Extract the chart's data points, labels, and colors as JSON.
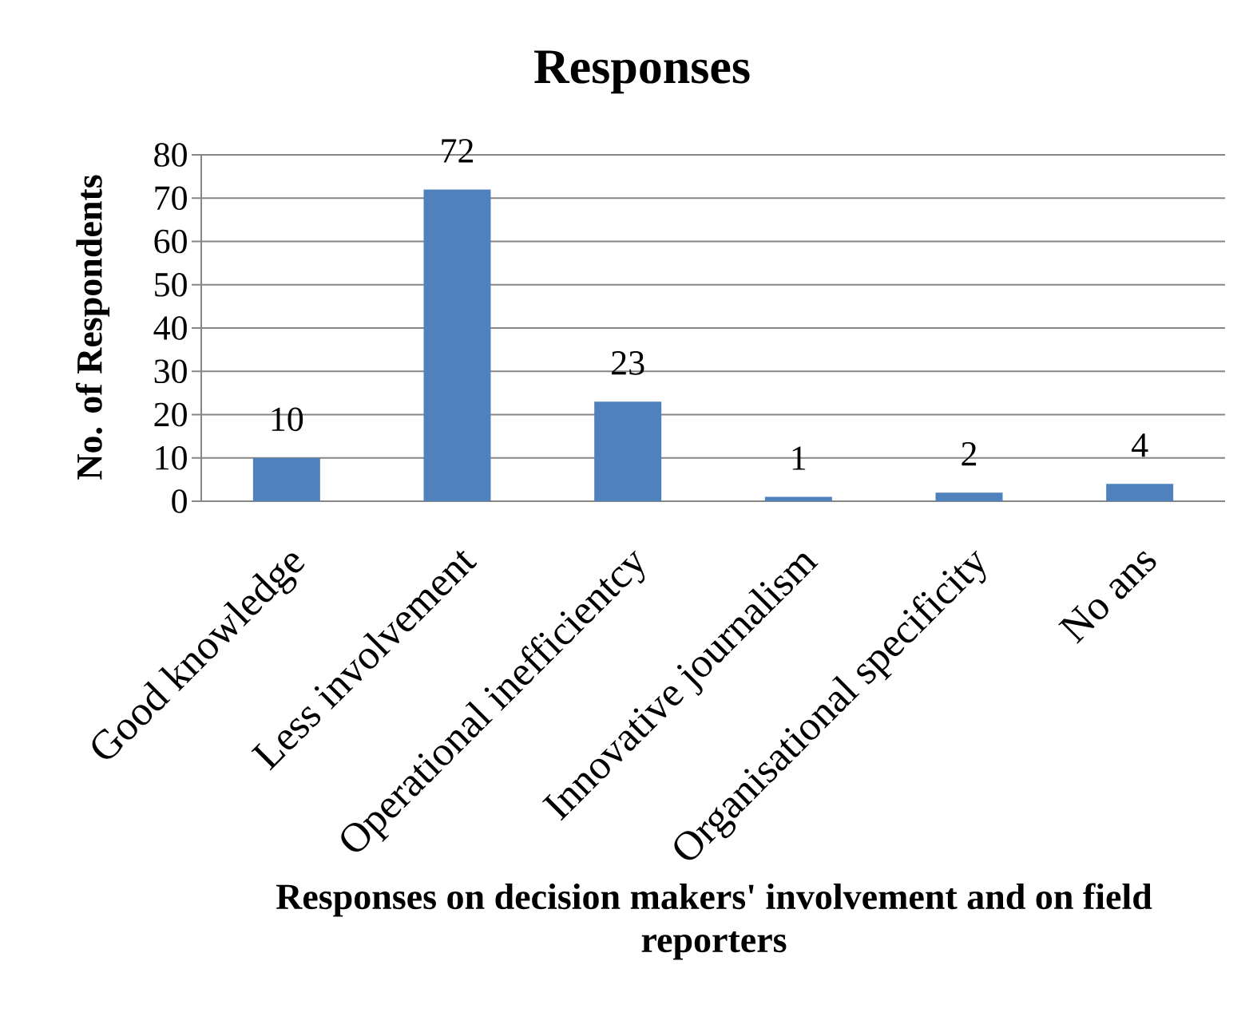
{
  "chart_data": {
    "type": "bar",
    "title": "Responses",
    "xlabel": "Responses on decision makers' involvement and on field reporters",
    "ylabel": "No. of Respondents",
    "categories": [
      "Good knowledge",
      "Less involvement",
      "Operational inefficientcy",
      "Innovative journalism",
      "Organisational specificity",
      "No ans"
    ],
    "values": [
      10,
      72,
      23,
      1,
      2,
      4
    ],
    "color": "#4f81bd",
    "ylim": [
      0,
      80
    ],
    "yticks": [
      0,
      10,
      20,
      30,
      40,
      50,
      60,
      70,
      80
    ],
    "grid": "y",
    "data_labels": true
  }
}
